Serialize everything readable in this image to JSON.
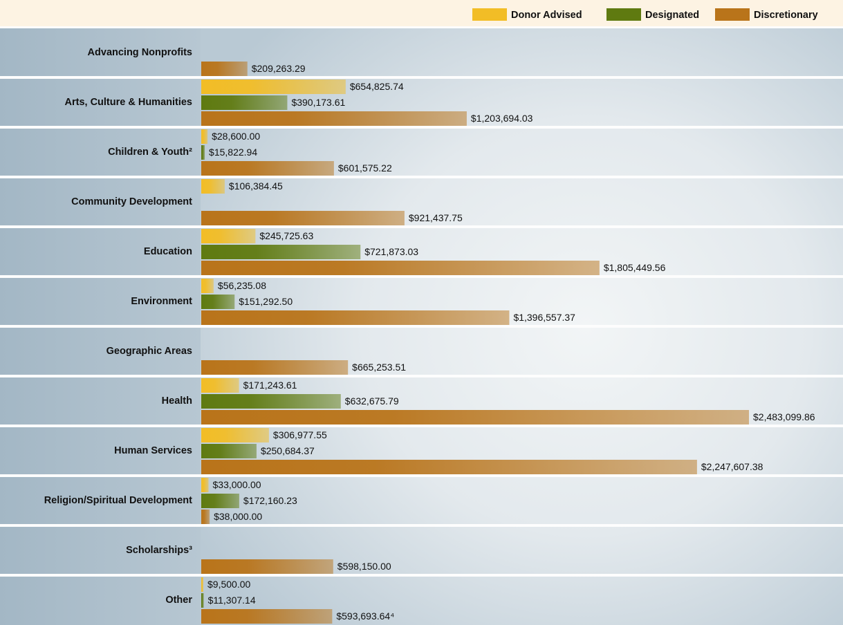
{
  "chart_data": {
    "type": "bar",
    "orientation": "horizontal",
    "categories": [
      "Advancing Nonprofits",
      "Arts, Culture & Humanities",
      "Children & Youth²",
      "Community Development",
      "Education",
      "Environment",
      "Geographic Areas",
      "Health",
      "Human Services",
      "Religion/Spiritual Development",
      "Scholarships³",
      "Other"
    ],
    "series": [
      {
        "name": "Donor Advised",
        "color": "#f2bd26",
        "values": [
          null,
          654825.74,
          28600.0,
          106384.45,
          245725.63,
          56235.08,
          null,
          171243.61,
          306977.55,
          33000.0,
          null,
          9500.0
        ],
        "value_labels": [
          null,
          "$654,825.74",
          "$28,600.00",
          "$106,384.45",
          "$245,725.63",
          "$56,235.08",
          null,
          "$171,243.61",
          "$306,977.55",
          "$33,000.00",
          null,
          "$9,500.00"
        ]
      },
      {
        "name": "Designated",
        "color": "#5f7a10",
        "values": [
          null,
          390173.61,
          15822.94,
          null,
          721873.03,
          151292.5,
          null,
          632675.79,
          250684.37,
          172160.23,
          null,
          11307.14
        ],
        "value_labels": [
          null,
          "$390,173.61",
          "$15,822.94",
          null,
          "$721,873.03",
          "$151,292.50",
          null,
          "$632,675.79",
          "$250,684.37",
          "$172,160.23",
          null,
          "$11,307.14"
        ]
      },
      {
        "name": "Discretionary",
        "color": "#b9741a",
        "values": [
          209263.29,
          1203694.03,
          601575.22,
          921437.75,
          1805449.56,
          1396557.37,
          665253.51,
          2483099.86,
          2247607.38,
          38000.0,
          598150.0,
          593693.64
        ],
        "value_labels": [
          "$209,263.29",
          "$1,203,694.03",
          "$601,575.22",
          "$921,437.75",
          "$1,805,449.56",
          "$1,396,557.37",
          "$665,253.51",
          "$2,483,099.86",
          "$2,247,607.38",
          "$38,000.00",
          "$598,150.00",
          "$593,693.64⁴"
        ]
      }
    ]
  }
}
